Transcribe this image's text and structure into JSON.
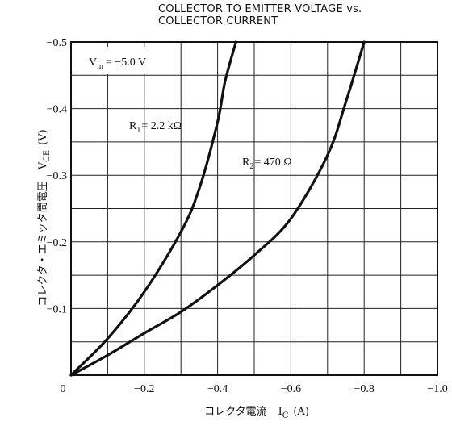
{
  "chart_data": {
    "type": "line",
    "title_lines": [
      "COLLECTOR TO EMITTER VOLTAGE vs.",
      "COLLECTOR CURRENT"
    ],
    "xlabel": {
      "text": "コレクタ電流",
      "symbol": "I",
      "sub": "C",
      "unit": "(A)"
    },
    "ylabel": {
      "text": "コレクタ・エミッタ間電圧",
      "symbol": "V",
      "sub": "CE",
      "unit": "(V)"
    },
    "xlim": [
      0,
      -1.0
    ],
    "ylim": [
      0,
      -0.5
    ],
    "x_ticks": [
      0,
      -0.2,
      -0.4,
      -0.6,
      -0.8,
      -1.0
    ],
    "x_tick_labels": [
      "0",
      "−0.2",
      "−0.4",
      "−0.6",
      "−0.8",
      "−1.0"
    ],
    "y_ticks": [
      -0.1,
      -0.2,
      -0.3,
      -0.4,
      -0.5
    ],
    "y_tick_labels": [
      "−0.1",
      "−0.2",
      "−0.3",
      "−0.4",
      "−0.5"
    ],
    "grid": true,
    "condition": {
      "symbol": "V",
      "sub": "in",
      "value": "= −5.0 V"
    },
    "series": [
      {
        "name": "R₁ = 2.2 kΩ",
        "label": {
          "symbol": "R",
          "sub": "1",
          "value": "= 2.2 kΩ"
        },
        "x": [
          0,
          -0.1,
          -0.2,
          -0.3,
          -0.35,
          -0.4,
          -0.42,
          -0.45
        ],
        "y": [
          0,
          -0.055,
          -0.125,
          -0.215,
          -0.28,
          -0.38,
          -0.44,
          -0.5
        ]
      },
      {
        "name": "R₂ = 470 Ω",
        "label": {
          "symbol": "R",
          "sub": "2",
          "value": "= 470 Ω"
        },
        "x": [
          0,
          -0.1,
          -0.2,
          -0.3,
          -0.4,
          -0.5,
          -0.6,
          -0.7,
          -0.75,
          -0.8
        ],
        "y": [
          0,
          -0.03,
          -0.063,
          -0.095,
          -0.135,
          -0.18,
          -0.235,
          -0.33,
          -0.41,
          -0.5
        ]
      }
    ]
  }
}
